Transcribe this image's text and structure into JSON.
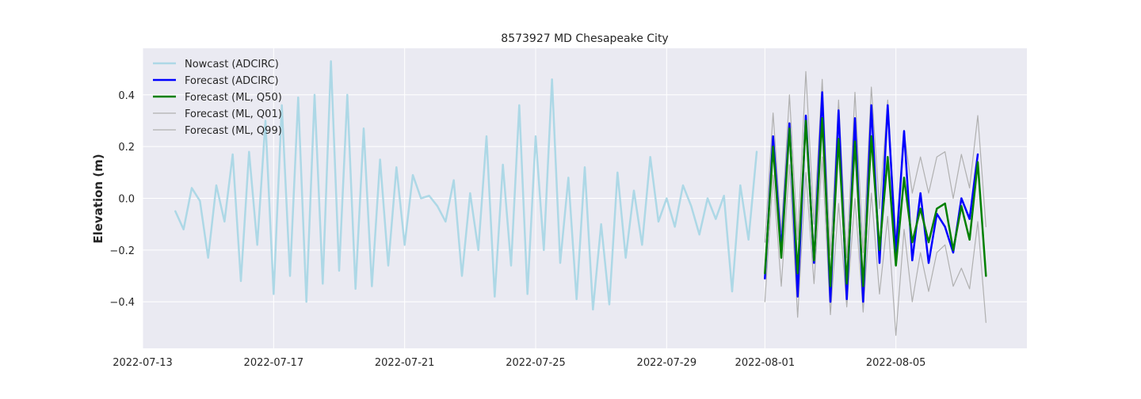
{
  "chart_data": {
    "type": "line",
    "title": "8573927 MD Chesapeake City",
    "xlabel": "",
    "ylabel": "Elevation (m)",
    "x_type": "date",
    "xlim": [
      "2022-07-13T00:00",
      "2022-08-09T00:00"
    ],
    "ylim": [
      -0.58,
      0.58
    ],
    "grid": true,
    "legend_position": "top-left",
    "x_ticks": [
      "2022-07-13",
      "2022-07-17",
      "2022-07-21",
      "2022-07-25",
      "2022-07-29",
      "2022-08-01",
      "2022-08-05"
    ],
    "y_ticks": [
      -0.4,
      -0.2,
      0.0,
      0.2,
      0.4
    ],
    "y_tick_labels": [
      "−0.4",
      "−0.2",
      "0.0",
      "0.2",
      "0.4"
    ],
    "series": [
      {
        "name": "Nowcast (ADCIRC)",
        "color": "#add8e6",
        "width": 2.5,
        "x": [
          "2022-07-14T00:00",
          "2022-07-14T06:00",
          "2022-07-14T12:00",
          "2022-07-14T18:00",
          "2022-07-15T00:00",
          "2022-07-15T06:00",
          "2022-07-15T12:00",
          "2022-07-15T18:00",
          "2022-07-16T00:00",
          "2022-07-16T06:00",
          "2022-07-16T12:00",
          "2022-07-16T18:00",
          "2022-07-17T00:00",
          "2022-07-17T06:00",
          "2022-07-17T12:00",
          "2022-07-17T18:00",
          "2022-07-18T00:00",
          "2022-07-18T06:00",
          "2022-07-18T12:00",
          "2022-07-18T18:00",
          "2022-07-19T00:00",
          "2022-07-19T06:00",
          "2022-07-19T12:00",
          "2022-07-19T18:00",
          "2022-07-20T00:00",
          "2022-07-20T06:00",
          "2022-07-20T12:00",
          "2022-07-20T18:00",
          "2022-07-21T00:00",
          "2022-07-21T06:00",
          "2022-07-21T12:00",
          "2022-07-21T18:00",
          "2022-07-22T00:00",
          "2022-07-22T06:00",
          "2022-07-22T12:00",
          "2022-07-22T18:00",
          "2022-07-23T00:00",
          "2022-07-23T06:00",
          "2022-07-23T12:00",
          "2022-07-23T18:00",
          "2022-07-24T00:00",
          "2022-07-24T06:00",
          "2022-07-24T12:00",
          "2022-07-24T18:00",
          "2022-07-25T00:00",
          "2022-07-25T06:00",
          "2022-07-25T12:00",
          "2022-07-25T18:00",
          "2022-07-26T00:00",
          "2022-07-26T06:00",
          "2022-07-26T12:00",
          "2022-07-26T18:00",
          "2022-07-27T00:00",
          "2022-07-27T06:00",
          "2022-07-27T12:00",
          "2022-07-27T18:00",
          "2022-07-28T00:00",
          "2022-07-28T06:00",
          "2022-07-28T12:00",
          "2022-07-28T18:00",
          "2022-07-29T00:00",
          "2022-07-29T06:00",
          "2022-07-29T12:00",
          "2022-07-29T18:00",
          "2022-07-30T00:00",
          "2022-07-30T06:00",
          "2022-07-30T12:00",
          "2022-07-30T18:00",
          "2022-07-31T00:00",
          "2022-07-31T06:00",
          "2022-07-31T12:00",
          "2022-07-31T18:00"
        ],
        "values": [
          -0.05,
          -0.12,
          0.04,
          -0.01,
          -0.23,
          0.05,
          -0.09,
          0.17,
          -0.32,
          0.18,
          -0.18,
          0.3,
          -0.37,
          0.36,
          -0.3,
          0.39,
          -0.4,
          0.4,
          -0.33,
          0.53,
          -0.28,
          0.4,
          -0.35,
          0.27,
          -0.34,
          0.15,
          -0.26,
          0.12,
          -0.18,
          0.09,
          0.0,
          0.01,
          -0.03,
          -0.09,
          0.07,
          -0.3,
          0.02,
          -0.2,
          0.24,
          -0.38,
          0.13,
          -0.26,
          0.36,
          -0.37,
          0.24,
          -0.2,
          0.46,
          -0.25,
          0.08,
          -0.39,
          0.12,
          -0.43,
          -0.1,
          -0.41,
          0.1,
          -0.23,
          0.03,
          -0.18,
          0.16,
          -0.09,
          0.0,
          -0.11,
          0.05,
          -0.03,
          -0.14,
          0.0,
          -0.08,
          0.01,
          -0.36,
          0.05,
          -0.16,
          0.18
        ]
      },
      {
        "name": "Forecast (ADCIRC)",
        "color": "#0000ff",
        "width": 2.5,
        "x": [
          "2022-08-01T00:00",
          "2022-08-01T06:00",
          "2022-08-01T12:00",
          "2022-08-01T18:00",
          "2022-08-02T00:00",
          "2022-08-02T06:00",
          "2022-08-02T12:00",
          "2022-08-02T18:00",
          "2022-08-03T00:00",
          "2022-08-03T06:00",
          "2022-08-03T12:00",
          "2022-08-03T18:00",
          "2022-08-04T00:00",
          "2022-08-04T06:00",
          "2022-08-04T12:00",
          "2022-08-04T18:00",
          "2022-08-05T00:00",
          "2022-08-05T06:00",
          "2022-08-05T12:00",
          "2022-08-05T18:00",
          "2022-08-06T00:00",
          "2022-08-06T06:00",
          "2022-08-06T12:00",
          "2022-08-06T18:00",
          "2022-08-07T00:00",
          "2022-08-07T06:00",
          "2022-08-07T12:00",
          "2022-08-07T18:00",
          "2022-08-08T00:00",
          "2022-08-08T06:00"
        ],
        "values": [
          -0.31,
          0.24,
          -0.2,
          0.29,
          -0.38,
          0.32,
          -0.25,
          0.41,
          -0.4,
          0.34,
          -0.39,
          0.31,
          -0.4,
          0.36,
          -0.25,
          0.36,
          -0.21,
          0.26,
          -0.24,
          0.02,
          -0.25,
          -0.06,
          -0.11,
          -0.21,
          0.0,
          -0.08,
          0.17,
          null,
          null,
          null
        ]
      },
      {
        "name": "Forecast (ML, Q50)",
        "color": "#008000",
        "width": 2.5,
        "x": [
          "2022-08-01T00:00",
          "2022-08-01T06:00",
          "2022-08-01T12:00",
          "2022-08-01T18:00",
          "2022-08-02T00:00",
          "2022-08-02T06:00",
          "2022-08-02T12:00",
          "2022-08-02T18:00",
          "2022-08-03T00:00",
          "2022-08-03T06:00",
          "2022-08-03T12:00",
          "2022-08-03T18:00",
          "2022-08-04T00:00",
          "2022-08-04T06:00",
          "2022-08-04T12:00",
          "2022-08-04T18:00",
          "2022-08-05T00:00",
          "2022-08-05T06:00",
          "2022-08-05T12:00",
          "2022-08-05T18:00",
          "2022-08-06T00:00",
          "2022-08-06T06:00",
          "2022-08-06T12:00",
          "2022-08-06T18:00",
          "2022-08-07T00:00",
          "2022-08-07T06:00",
          "2022-08-07T12:00",
          "2022-08-07T18:00",
          "2022-08-08T00:00",
          "2022-08-08T06:00"
        ],
        "values": [
          -0.29,
          0.2,
          -0.23,
          0.27,
          -0.29,
          0.3,
          -0.24,
          0.31,
          -0.34,
          0.23,
          -0.33,
          0.22,
          -0.34,
          0.24,
          -0.2,
          0.16,
          -0.26,
          0.08,
          -0.17,
          -0.04,
          -0.17,
          -0.04,
          -0.02,
          -0.2,
          -0.03,
          -0.16,
          0.14,
          -0.3,
          null,
          null
        ]
      },
      {
        "name": "Forecast (ML, Q01)",
        "color": "#b0b0b0",
        "width": 1.2,
        "x": [
          "2022-08-01T00:00",
          "2022-08-01T06:00",
          "2022-08-01T12:00",
          "2022-08-01T18:00",
          "2022-08-02T00:00",
          "2022-08-02T06:00",
          "2022-08-02T12:00",
          "2022-08-02T18:00",
          "2022-08-03T00:00",
          "2022-08-03T06:00",
          "2022-08-03T12:00",
          "2022-08-03T18:00",
          "2022-08-04T00:00",
          "2022-08-04T06:00",
          "2022-08-04T12:00",
          "2022-08-04T18:00",
          "2022-08-05T00:00",
          "2022-08-05T06:00",
          "2022-08-05T12:00",
          "2022-08-05T18:00",
          "2022-08-06T00:00",
          "2022-08-06T06:00",
          "2022-08-06T12:00",
          "2022-08-06T18:00",
          "2022-08-07T00:00",
          "2022-08-07T06:00",
          "2022-08-07T12:00",
          "2022-08-07T18:00",
          "2022-08-08T00:00",
          "2022-08-08T06:00"
        ],
        "values": [
          -0.4,
          0.09,
          -0.34,
          0.13,
          -0.46,
          0.1,
          -0.33,
          0.16,
          -0.45,
          -0.02,
          -0.42,
          0.0,
          -0.44,
          0.02,
          -0.37,
          -0.07,
          -0.53,
          -0.12,
          -0.4,
          -0.21,
          -0.36,
          -0.21,
          -0.18,
          -0.34,
          -0.27,
          -0.35,
          -0.09,
          -0.48,
          null,
          null
        ]
      },
      {
        "name": "Forecast (ML, Q99)",
        "color": "#b0b0b0",
        "width": 1.2,
        "x": [
          "2022-08-01T00:00",
          "2022-08-01T06:00",
          "2022-08-01T12:00",
          "2022-08-01T18:00",
          "2022-08-02T00:00",
          "2022-08-02T06:00",
          "2022-08-02T12:00",
          "2022-08-02T18:00",
          "2022-08-03T00:00",
          "2022-08-03T06:00",
          "2022-08-03T12:00",
          "2022-08-03T18:00",
          "2022-08-04T00:00",
          "2022-08-04T06:00",
          "2022-08-04T12:00",
          "2022-08-04T18:00",
          "2022-08-05T00:00",
          "2022-08-05T06:00",
          "2022-08-05T12:00",
          "2022-08-05T18:00",
          "2022-08-06T00:00",
          "2022-08-06T06:00",
          "2022-08-06T12:00",
          "2022-08-06T18:00",
          "2022-08-07T00:00",
          "2022-08-07T06:00",
          "2022-08-07T12:00",
          "2022-08-07T18:00",
          "2022-08-08T00:00",
          "2022-08-08T06:00"
        ],
        "values": [
          -0.17,
          0.33,
          -0.13,
          0.4,
          -0.16,
          0.49,
          -0.1,
          0.46,
          -0.22,
          0.38,
          -0.23,
          0.41,
          -0.21,
          0.43,
          -0.04,
          0.38,
          -0.15,
          0.26,
          0.02,
          0.16,
          0.02,
          0.16,
          0.18,
          0.0,
          0.17,
          0.04,
          0.32,
          -0.11,
          null,
          null
        ]
      }
    ]
  }
}
